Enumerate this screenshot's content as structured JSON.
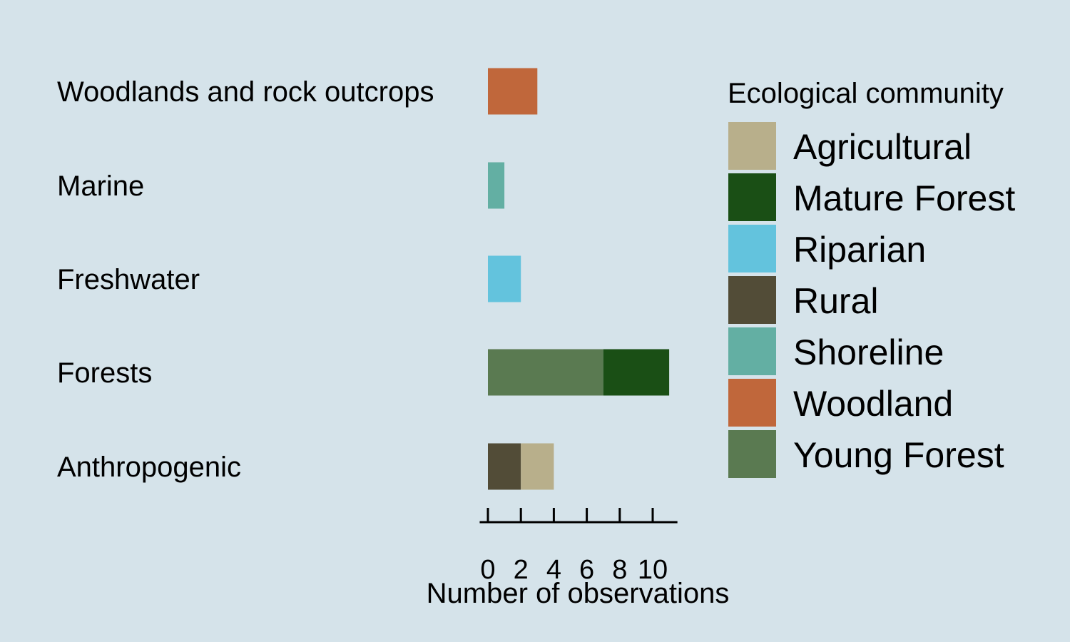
{
  "chart_data": {
    "type": "bar",
    "orientation": "horizontal",
    "stacked": true,
    "categories": [
      "Woodlands and rock outcrops",
      "Marine",
      "Freshwater",
      "Forests",
      "Anthropogenic"
    ],
    "series": [
      {
        "name": "Woodland",
        "color": "#c0673b",
        "values": [
          3,
          0,
          0,
          0,
          0
        ]
      },
      {
        "name": "Shoreline",
        "color": "#63afa3",
        "values": [
          0,
          1,
          0,
          0,
          0
        ]
      },
      {
        "name": "Riparian",
        "color": "#63c3dd",
        "values": [
          0,
          0,
          2,
          0,
          0
        ]
      },
      {
        "name": "Young Forest",
        "color": "#5a7a51",
        "values": [
          0,
          0,
          0,
          7,
          0
        ]
      },
      {
        "name": "Mature Forest",
        "color": "#1a4f15",
        "values": [
          0,
          0,
          0,
          4,
          0
        ]
      },
      {
        "name": "Rural",
        "color": "#524c37",
        "values": [
          0,
          0,
          0,
          0,
          2
        ]
      },
      {
        "name": "Agricultural",
        "color": "#b8af8b",
        "values": [
          0,
          0,
          0,
          0,
          2
        ]
      }
    ],
    "xlabel": "Number of observations",
    "ylabel": "",
    "title": "",
    "xlim": [
      -0.5,
      11.5
    ],
    "xticks": [
      0,
      2,
      4,
      6,
      8,
      10
    ],
    "xtick_labels": [
      "0",
      "2",
      "4",
      "6",
      "8",
      "10"
    ],
    "legend": {
      "title": "Ecological community",
      "position": "right",
      "entries": [
        "Agricultural",
        "Mature Forest",
        "Riparian",
        "Rural",
        "Shoreline",
        "Woodland",
        "Young Forest"
      ]
    },
    "background": "#d5e3ea",
    "grid": false
  }
}
